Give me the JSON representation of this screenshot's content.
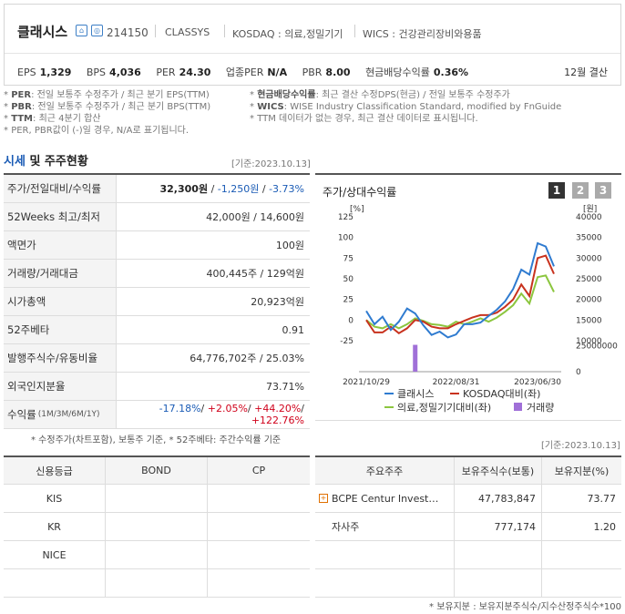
{
  "header": {
    "company_name": "클래시스",
    "code": "214150",
    "english_name": "CLASSYS",
    "market": "KOSDAQ : 의료,정밀기기",
    "wics": "WICS : 건강관리장비와용품",
    "icon1": "home-icon",
    "icon2": "ir-icon",
    "settlement": "12월 결산",
    "stats": [
      {
        "label": "EPS",
        "value": "1,329"
      },
      {
        "label": "BPS",
        "value": "4,036"
      },
      {
        "label": "PER",
        "value": "24.30"
      },
      {
        "label": "업종PER",
        "value": "N/A"
      },
      {
        "label": "PBR",
        "value": "8.00"
      },
      {
        "label": "현금배당수익률",
        "value": "0.36%"
      }
    ]
  },
  "notes": {
    "left": [
      {
        "key": "PER",
        "text": ": 전일 보통주 수정주가 / 최근 분기 EPS(TTM)"
      },
      {
        "key": "PBR",
        "text": ": 전일 보통주 수정주가 / 최근 분기 BPS(TTM)"
      },
      {
        "key": "TTM",
        "text": ": 최근 4분기 합산"
      },
      {
        "key": "",
        "text": "PER, PBR값이 (-)일 경우, N/A로 표기됩니다."
      }
    ],
    "right": [
      {
        "key": "현금배당수익률",
        "text": ": 최근 결산 수정DPS(현금) / 전일 보통주 수정주가"
      },
      {
        "key": "WICS",
        "text": ": WISE Industry Classification Standard, modified by FnGuide"
      },
      {
        "key": "",
        "text": "TTM 데이터가 없는 경우, 최근 결산 데이터로 표시됩니다."
      }
    ]
  },
  "section": {
    "title_blue": "시세",
    "title_rest": " 및 주주현황",
    "basis": "[기준:2023.10.13]"
  },
  "price_table": {
    "rows": [
      {
        "label": "주가/전일대비/수익률",
        "price": "32,300원",
        "change": "-1,250원",
        "rate": "-3.73%"
      },
      {
        "label": "52Weeks 최고/최저",
        "value": "42,000원 / 14,600원"
      },
      {
        "label": "액면가",
        "value": "100원"
      },
      {
        "label": "거래량/거래대금",
        "value": "400,445주 / 129억원"
      },
      {
        "label": "시가총액",
        "value": "20,923억원"
      },
      {
        "label": "52주베타",
        "value": "0.91"
      },
      {
        "label": "발행주식수/유동비율",
        "value": "64,776,702주 / 25.03%"
      },
      {
        "label": "외국인지분율",
        "value": "73.71%"
      }
    ],
    "returns": {
      "label": "수익률",
      "periods": "(1M/3M/6M/1Y)",
      "r1": "-17.18%",
      "r2": "+2.05%",
      "r3": "+44.20%",
      "r4": "+122.76%"
    },
    "footnote": "* 수정주가(차트포함), 보통주 기준, * 52주베타: 주간수익률 기준"
  },
  "chart_panel": {
    "title": "주가/상대수익률",
    "pages": [
      "1",
      "2",
      "3"
    ],
    "active_page": "1"
  },
  "chart_data": {
    "type": "line",
    "left_unit": "[%]",
    "right_unit": "[원]",
    "left_ticks": [
      "125",
      "100",
      "75",
      "50",
      "25",
      "0",
      "-25"
    ],
    "right_ticks": [
      "40000",
      "35000",
      "30000",
      "25000",
      "20000",
      "15000",
      "10000"
    ],
    "volume_ticks": [
      "25000000",
      "0"
    ],
    "x_ticks": [
      "2021/10/29",
      "2022/08/31",
      "2023/06/30"
    ],
    "ylim_left": [
      -25,
      125
    ],
    "ylim_right": [
      10000,
      40000
    ],
    "grid": false,
    "legend": "bottom",
    "colors": {
      "price": "#2f7bd0",
      "kosdaq": "#c8321e",
      "sector": "#8cc63f",
      "volume": "#a070d8"
    },
    "series": [
      {
        "name": "클래시스",
        "axis": "right",
        "values": [
          17200,
          14000,
          15800,
          12600,
          14600,
          17800,
          16600,
          13700,
          11400,
          12200,
          10800,
          11500,
          14000,
          14000,
          14400,
          16000,
          17500,
          19500,
          22500,
          27200,
          26000,
          33600,
          32800,
          28000
        ]
      },
      {
        "name": "KOSDAQ대비(좌)",
        "axis": "left",
        "values": [
          0,
          -15,
          -15,
          -8,
          -16,
          -10,
          0,
          -2,
          -8,
          -10,
          -10,
          -5,
          -1,
          3,
          6,
          6,
          9,
          16,
          25,
          43,
          29,
          75,
          78,
          56
        ]
      },
      {
        "name": "의료,정밀기기대비(좌)",
        "axis": "left",
        "values": [
          0,
          -8,
          -10,
          -5,
          -10,
          -5,
          2,
          -1,
          -5,
          -6,
          -8,
          -2,
          -5,
          -2,
          2,
          -2,
          3,
          10,
          18,
          32,
          20,
          52,
          54,
          34
        ]
      },
      {
        "name": "거래량",
        "axis": "volume",
        "values": [
          0,
          0,
          0,
          0,
          0,
          0,
          26000000,
          0,
          0,
          0,
          0,
          0,
          0,
          0,
          0,
          0,
          0,
          0,
          0,
          0,
          0,
          0,
          0,
          0
        ]
      }
    ]
  },
  "credit_table": {
    "headers": [
      "신용등급",
      "BOND",
      "CP"
    ],
    "rows": [
      [
        "KIS",
        "",
        ""
      ],
      [
        "KR",
        "",
        ""
      ],
      [
        "NICE",
        "",
        ""
      ],
      [
        "",
        "",
        ""
      ]
    ]
  },
  "holders_table": {
    "basis": "[기준:2023.10.13]",
    "headers": [
      "주요주주",
      "보유주식수(보통)",
      "보유지분(%)"
    ],
    "rows": [
      {
        "name": "BCPE Centur Investm…",
        "shares": "47,783,847",
        "pct": "73.77",
        "expandable": true
      },
      {
        "name": "자사주",
        "shares": "777,174",
        "pct": "1.20",
        "expandable": false
      },
      {
        "name": "",
        "shares": "",
        "pct": ""
      },
      {
        "name": "",
        "shares": "",
        "pct": ""
      }
    ],
    "footnote": "* 보유지분 : 보유지분주식수/지수산정주식수*100"
  }
}
